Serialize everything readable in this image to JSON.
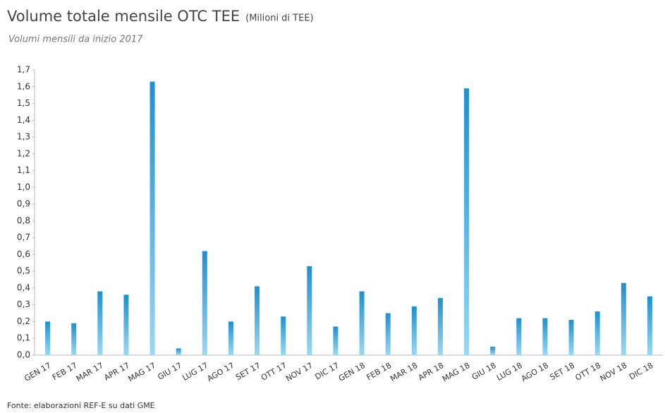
{
  "chart_data": {
    "type": "bar",
    "title": "Volume totale mensile OTC TEE",
    "unit": "(Milioni di TEE)",
    "subtitle": "Volumi mensili da inizio 2017",
    "source": "Fonte: elaborazioni REF-E su dati GME",
    "categories": [
      "GEN 17",
      "FEB 17",
      "MAR 17",
      "APR 17",
      "MAG 17",
      "GIU 17",
      "LUG 17",
      "AGO 17",
      "SET 17",
      "OTT 17",
      "NOV 17",
      "DIC 17",
      "GEN 18",
      "FEB 18",
      "MAR 18",
      "APR 18",
      "MAG 18",
      "GIU 18",
      "LUG 18",
      "AGO 18",
      "SET 18",
      "OTT 18",
      "NOV 18",
      "DIC 18"
    ],
    "values": [
      0.2,
      0.19,
      0.38,
      0.36,
      1.63,
      0.04,
      0.62,
      0.2,
      0.41,
      0.23,
      0.53,
      0.17,
      0.38,
      0.25,
      0.29,
      0.34,
      1.59,
      0.05,
      0.22,
      0.22,
      0.21,
      0.26,
      0.43,
      0.35
    ],
    "color": "#1e90d0",
    "ylim": [
      0,
      1.7
    ],
    "yticks": [
      {
        "value": 0,
        "label": "0,0"
      },
      {
        "value": 0.1,
        "label": "0,1"
      },
      {
        "value": 0.2,
        "label": "0,2"
      },
      {
        "value": 0.3,
        "label": "0,3"
      },
      {
        "value": 0.4,
        "label": "0,4"
      },
      {
        "value": 0.5,
        "label": "0,5"
      },
      {
        "value": 0.6,
        "label": "0,6"
      },
      {
        "value": 0.7,
        "label": "0,7"
      },
      {
        "value": 0.8,
        "label": "0,8"
      },
      {
        "value": 0.9,
        "label": "0,9"
      },
      {
        "value": 1.0,
        "label": "1,0"
      },
      {
        "value": 1.1,
        "label": "1,1"
      },
      {
        "value": 1.2,
        "label": "1,2"
      },
      {
        "value": 1.3,
        "label": "1,3"
      },
      {
        "value": 1.4,
        "label": "1,4"
      },
      {
        "value": 1.5,
        "label": "1,5"
      },
      {
        "value": 1.6,
        "label": "1,6"
      },
      {
        "value": 1.7,
        "label": "1,7"
      }
    ],
    "grid": false
  }
}
